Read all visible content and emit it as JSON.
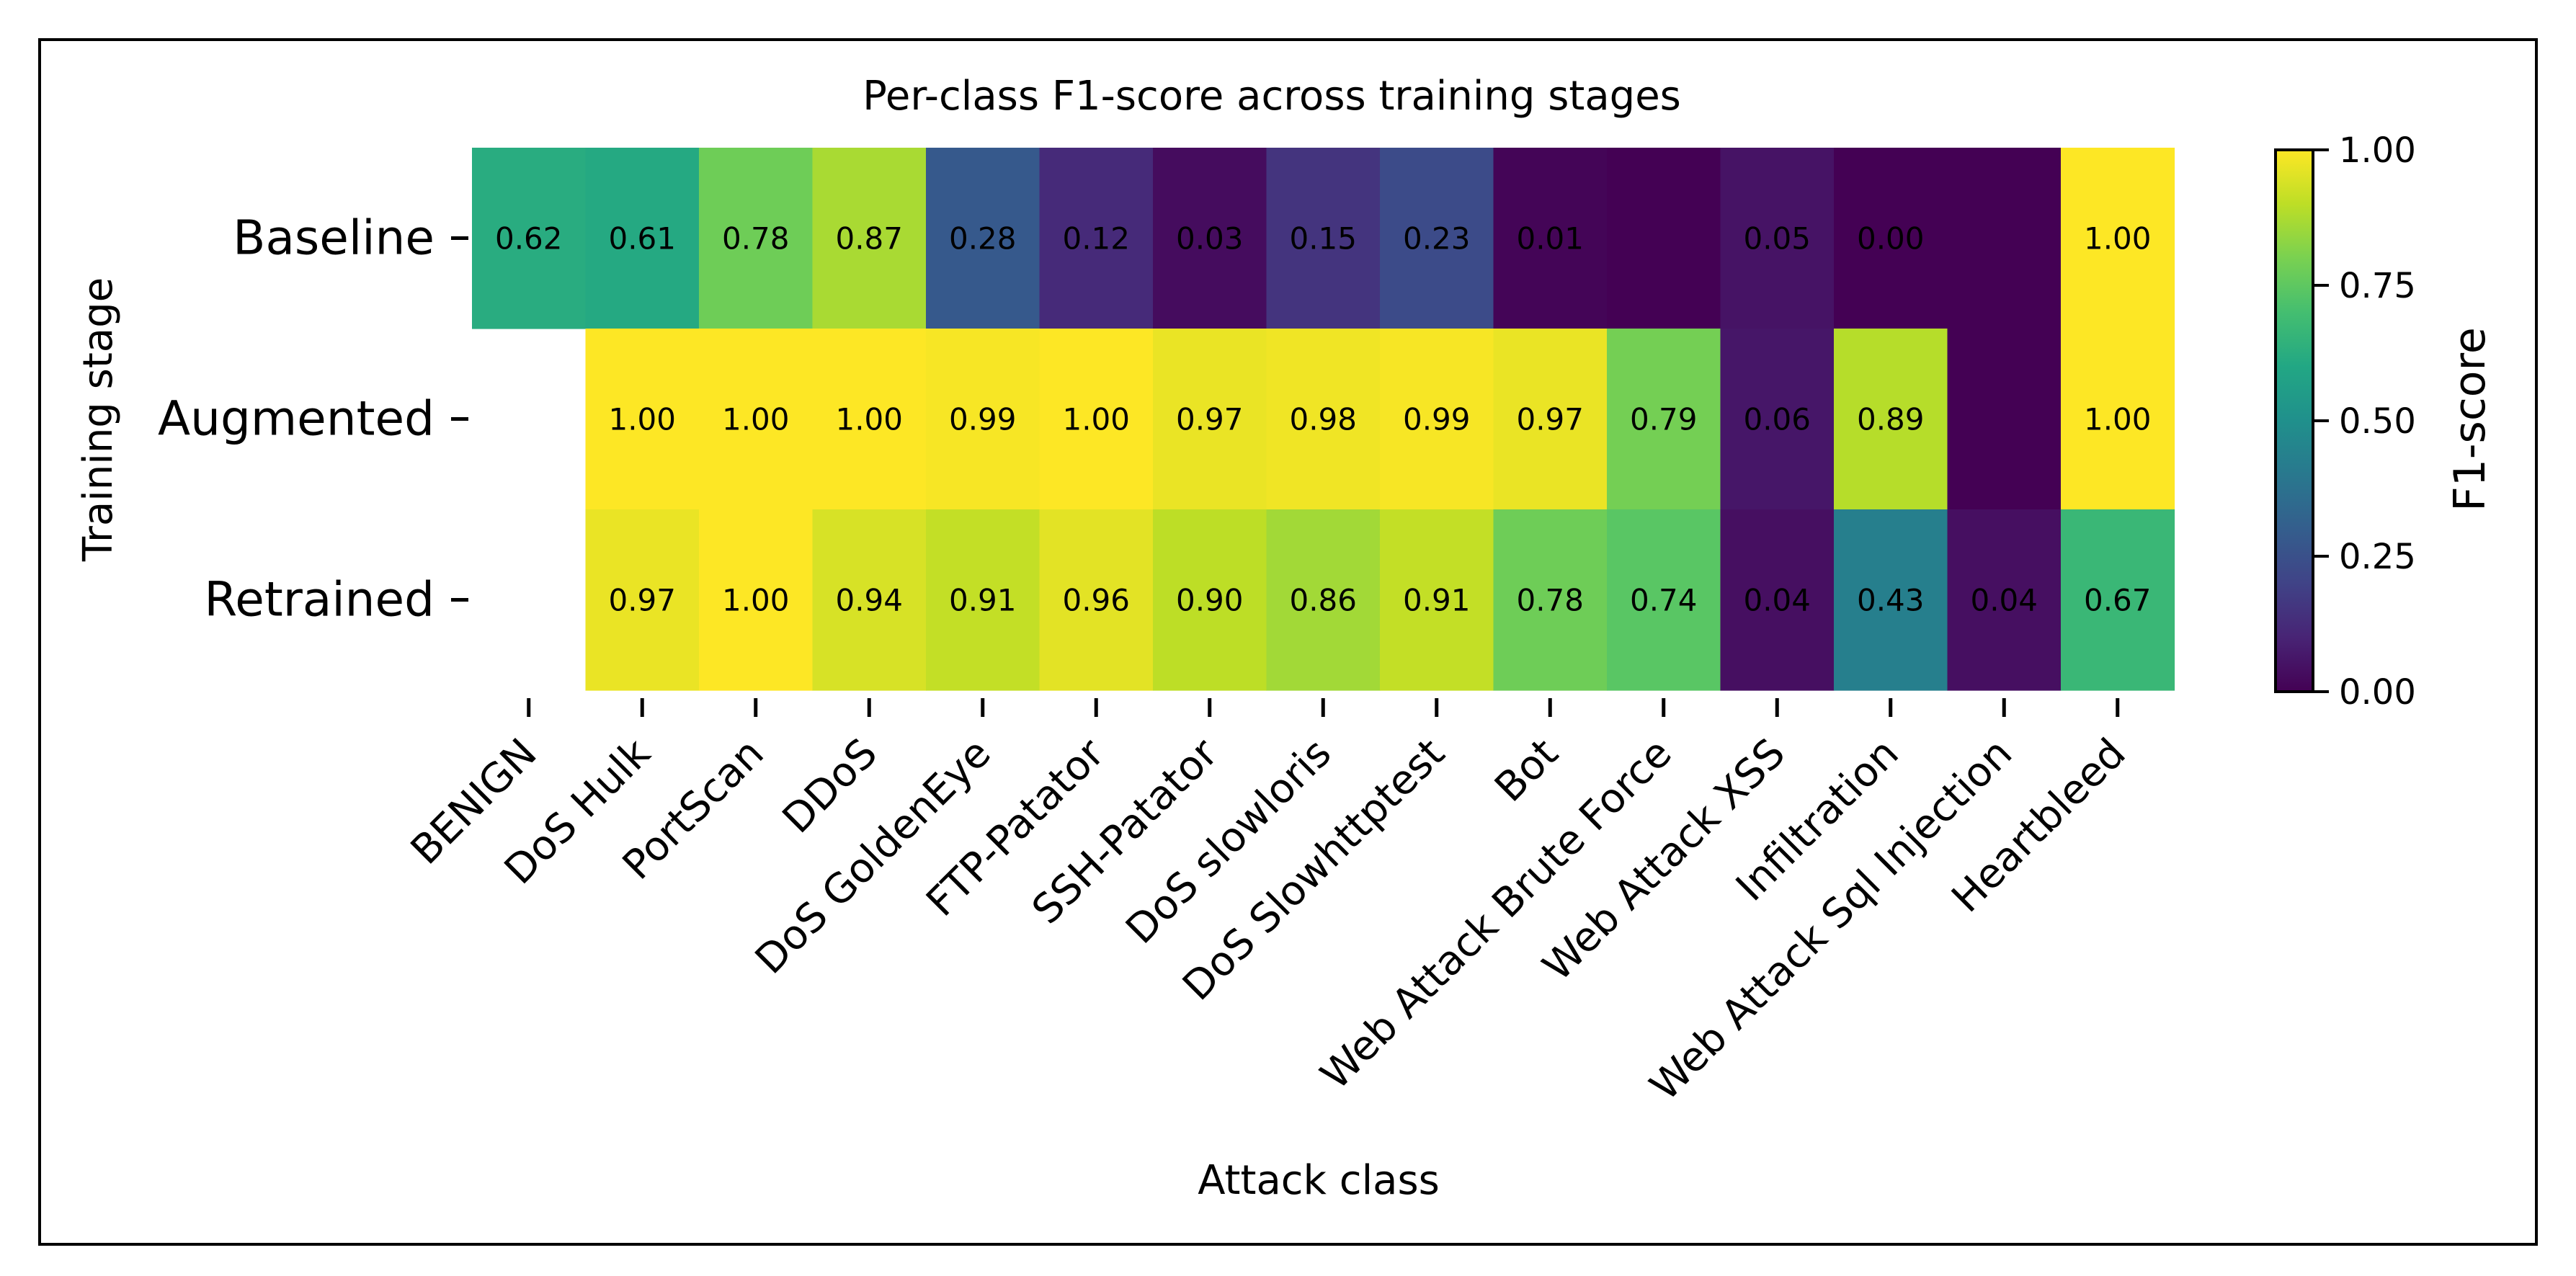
{
  "chart_data": {
    "type": "heatmap",
    "title": "Per-class F1-score across training stages",
    "xlabel": "Attack class",
    "ylabel": "Training stage",
    "colorbar_label": "F1-score",
    "colorbar_range": [
      0,
      1
    ],
    "colorbar_ticks": [
      "0.00",
      "0.25",
      "0.50",
      "0.75",
      "1.00"
    ],
    "colormap": "viridis",
    "rows": [
      "Baseline",
      "Augmented",
      "Retrained"
    ],
    "columns": [
      "BENIGN",
      "DoS Hulk",
      "PortScan",
      "DDoS",
      "DoS GoldenEye",
      "FTP-Patator",
      "SSH-Patator",
      "DoS slowloris",
      "DoS Slowhttptest",
      "Bot",
      "Web Attack Brute Force",
      "Web Attack XSS",
      "Infiltration",
      "Web Attack Sql Injection",
      "Heartbleed"
    ],
    "values": [
      [
        0.62,
        0.61,
        0.78,
        0.87,
        0.28,
        0.12,
        0.03,
        0.15,
        0.23,
        0.01,
        0.0,
        0.05,
        0.0,
        0.0,
        1.0
      ],
      [
        null,
        1.0,
        1.0,
        1.0,
        0.99,
        1.0,
        0.97,
        0.98,
        0.99,
        0.97,
        0.79,
        0.06,
        0.89,
        0.0,
        1.0
      ],
      [
        null,
        0.97,
        1.0,
        0.94,
        0.91,
        0.96,
        0.9,
        0.86,
        0.91,
        0.78,
        0.74,
        0.04,
        0.43,
        0.04,
        0.67
      ]
    ],
    "labels": [
      [
        "0.62",
        "0.61",
        "0.78",
        "0.87",
        "0.28",
        "0.12",
        "0.03",
        "0.15",
        "0.23",
        "0.01",
        "",
        "0.05",
        "0.00",
        "",
        "1.00"
      ],
      [
        "",
        "1.00",
        "1.00",
        "1.00",
        "0.99",
        "1.00",
        "0.97",
        "0.98",
        "0.99",
        "0.97",
        "0.79",
        "0.06",
        "0.89",
        "",
        "1.00"
      ],
      [
        "",
        "0.97",
        "1.00",
        "0.94",
        "0.91",
        "0.96",
        "0.90",
        "0.86",
        "0.91",
        "0.78",
        "0.74",
        "0.04",
        "0.43",
        "0.04",
        "0.67"
      ]
    ]
  }
}
